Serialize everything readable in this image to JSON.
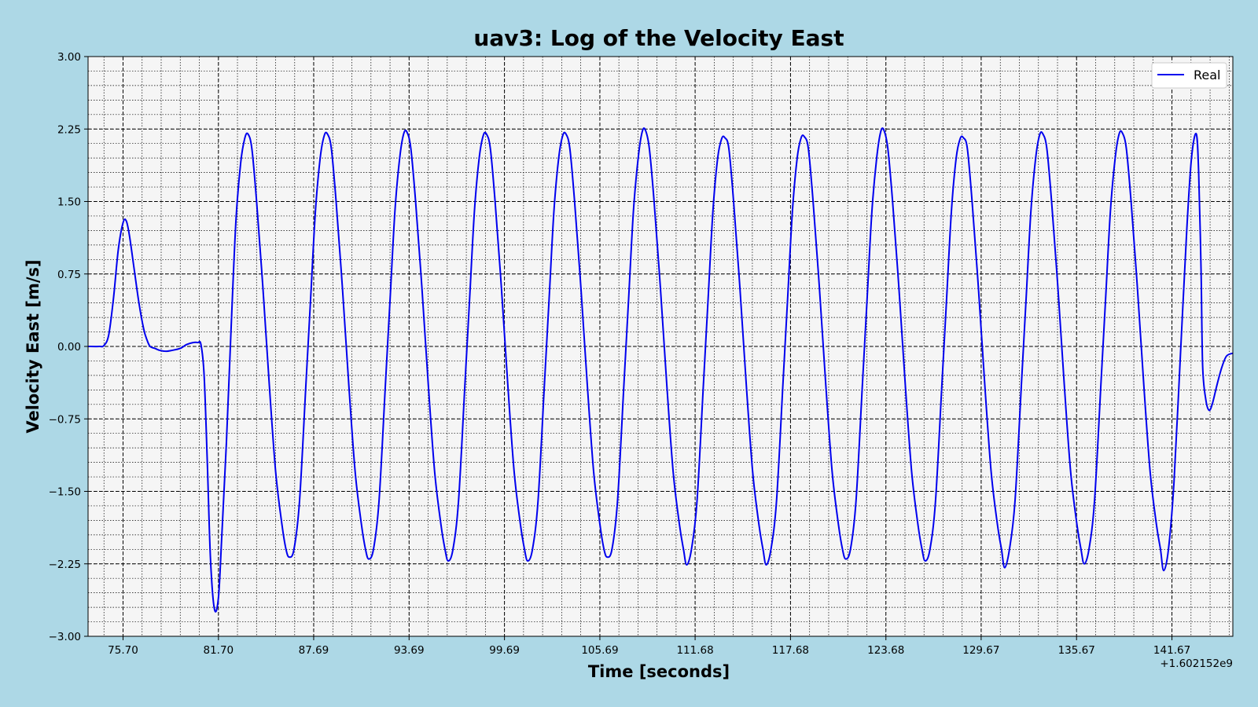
{
  "chart_data": {
    "type": "line",
    "title": "uav3: Log of the Velocity East",
    "xlabel": "Time [seconds]",
    "ylabel": "Velocity East [m/s]",
    "x_offset_label": "+1.602152e9",
    "xlim": [
      73.5,
      145.5
    ],
    "ylim": [
      -3.0,
      3.0
    ],
    "grid": "on",
    "legend_position": "top-right",
    "x_ticks": [
      75.7,
      81.7,
      87.69,
      93.69,
      99.69,
      105.69,
      111.68,
      117.68,
      123.68,
      129.67,
      135.67,
      141.67
    ],
    "x_tick_labels": [
      "75.70",
      "81.70",
      "87.69",
      "93.69",
      "99.69",
      "105.69",
      "111.68",
      "117.68",
      "123.68",
      "129.67",
      "135.67",
      "141.67"
    ],
    "y_ticks": [
      3.0,
      2.25,
      1.5,
      0.75,
      0.0,
      -0.75,
      -1.5,
      -2.25,
      -3.0
    ],
    "y_tick_labels": [
      "3.00",
      "2.25",
      "1.50",
      "0.75",
      "0.00",
      "−0.75",
      "−1.50",
      "−2.25",
      "−3.00"
    ],
    "series": [
      {
        "name": "Real",
        "color": "#0000ee",
        "points": [
          [
            73.5,
            0.0
          ],
          [
            74.2,
            0.0
          ],
          [
            74.5,
            0.01
          ],
          [
            74.8,
            0.12
          ],
          [
            75.1,
            0.5
          ],
          [
            75.4,
            1.0
          ],
          [
            75.7,
            1.28
          ],
          [
            75.9,
            1.3
          ],
          [
            76.1,
            1.15
          ],
          [
            76.4,
            0.8
          ],
          [
            76.7,
            0.45
          ],
          [
            77.0,
            0.18
          ],
          [
            77.2,
            0.07
          ],
          [
            77.4,
            0.0
          ],
          [
            77.7,
            -0.02
          ],
          [
            78.0,
            -0.04
          ],
          [
            78.4,
            -0.05
          ],
          [
            78.8,
            -0.04
          ],
          [
            79.3,
            -0.02
          ],
          [
            79.7,
            0.02
          ],
          [
            80.1,
            0.04
          ],
          [
            80.4,
            0.04
          ],
          [
            80.6,
            0.02
          ],
          [
            80.8,
            -0.3
          ],
          [
            81.0,
            -1.2
          ],
          [
            81.2,
            -2.2
          ],
          [
            81.45,
            -2.72
          ],
          [
            81.7,
            -2.6
          ],
          [
            81.9,
            -2.0
          ],
          [
            82.2,
            -1.0
          ],
          [
            82.5,
            0.2
          ],
          [
            82.8,
            1.3
          ],
          [
            83.1,
            1.9
          ],
          [
            83.35,
            2.15
          ],
          [
            83.55,
            2.2
          ],
          [
            83.8,
            2.05
          ],
          [
            84.1,
            1.5
          ],
          [
            84.5,
            0.6
          ],
          [
            84.9,
            -0.4
          ],
          [
            85.3,
            -1.3
          ],
          [
            85.7,
            -1.85
          ],
          [
            85.95,
            -2.1
          ],
          [
            86.15,
            -2.18
          ],
          [
            86.45,
            -2.1
          ],
          [
            86.8,
            -1.6
          ],
          [
            87.2,
            -0.4
          ],
          [
            87.5,
            0.5
          ],
          [
            87.8,
            1.4
          ],
          [
            88.1,
            1.95
          ],
          [
            88.35,
            2.18
          ],
          [
            88.55,
            2.2
          ],
          [
            88.8,
            2.05
          ],
          [
            89.1,
            1.5
          ],
          [
            89.5,
            0.6
          ],
          [
            89.9,
            -0.4
          ],
          [
            90.3,
            -1.3
          ],
          [
            90.7,
            -1.85
          ],
          [
            90.95,
            -2.1
          ],
          [
            91.15,
            -2.2
          ],
          [
            91.45,
            -2.1
          ],
          [
            91.8,
            -1.6
          ],
          [
            92.2,
            -0.4
          ],
          [
            92.5,
            0.5
          ],
          [
            92.8,
            1.4
          ],
          [
            93.1,
            1.95
          ],
          [
            93.35,
            2.2
          ],
          [
            93.55,
            2.22
          ],
          [
            93.8,
            2.05
          ],
          [
            94.1,
            1.5
          ],
          [
            94.5,
            0.6
          ],
          [
            94.9,
            -0.4
          ],
          [
            95.3,
            -1.3
          ],
          [
            95.7,
            -1.85
          ],
          [
            95.95,
            -2.1
          ],
          [
            96.15,
            -2.22
          ],
          [
            96.45,
            -2.1
          ],
          [
            96.8,
            -1.6
          ],
          [
            97.2,
            -0.4
          ],
          [
            97.5,
            0.5
          ],
          [
            97.8,
            1.4
          ],
          [
            98.1,
            1.95
          ],
          [
            98.35,
            2.18
          ],
          [
            98.55,
            2.2
          ],
          [
            98.8,
            2.05
          ],
          [
            99.1,
            1.5
          ],
          [
            99.5,
            0.6
          ],
          [
            99.9,
            -0.4
          ],
          [
            100.3,
            -1.3
          ],
          [
            100.7,
            -1.85
          ],
          [
            100.95,
            -2.1
          ],
          [
            101.15,
            -2.22
          ],
          [
            101.45,
            -2.1
          ],
          [
            101.8,
            -1.6
          ],
          [
            102.2,
            -0.4
          ],
          [
            102.5,
            0.5
          ],
          [
            102.8,
            1.4
          ],
          [
            103.1,
            1.95
          ],
          [
            103.35,
            2.18
          ],
          [
            103.55,
            2.2
          ],
          [
            103.8,
            2.05
          ],
          [
            104.1,
            1.5
          ],
          [
            104.5,
            0.6
          ],
          [
            104.9,
            -0.4
          ],
          [
            105.3,
            -1.3
          ],
          [
            105.7,
            -1.85
          ],
          [
            105.95,
            -2.1
          ],
          [
            106.15,
            -2.18
          ],
          [
            106.45,
            -2.1
          ],
          [
            106.8,
            -1.6
          ],
          [
            107.2,
            -0.4
          ],
          [
            107.5,
            0.5
          ],
          [
            107.8,
            1.4
          ],
          [
            108.1,
            1.95
          ],
          [
            108.35,
            2.22
          ],
          [
            108.55,
            2.24
          ],
          [
            108.8,
            2.05
          ],
          [
            109.1,
            1.5
          ],
          [
            109.5,
            0.6
          ],
          [
            109.9,
            -0.4
          ],
          [
            110.3,
            -1.3
          ],
          [
            110.7,
            -1.85
          ],
          [
            110.95,
            -2.1
          ],
          [
            111.15,
            -2.26
          ],
          [
            111.45,
            -2.1
          ],
          [
            111.8,
            -1.6
          ],
          [
            112.2,
            -0.4
          ],
          [
            112.5,
            0.5
          ],
          [
            112.8,
            1.4
          ],
          [
            113.1,
            1.95
          ],
          [
            113.35,
            2.15
          ],
          [
            113.55,
            2.16
          ],
          [
            113.8,
            2.05
          ],
          [
            114.1,
            1.5
          ],
          [
            114.5,
            0.6
          ],
          [
            114.9,
            -0.4
          ],
          [
            115.3,
            -1.3
          ],
          [
            115.7,
            -1.85
          ],
          [
            115.95,
            -2.1
          ],
          [
            116.15,
            -2.26
          ],
          [
            116.45,
            -2.1
          ],
          [
            116.8,
            -1.6
          ],
          [
            117.2,
            -0.4
          ],
          [
            117.5,
            0.5
          ],
          [
            117.8,
            1.4
          ],
          [
            118.1,
            1.95
          ],
          [
            118.35,
            2.16
          ],
          [
            118.55,
            2.17
          ],
          [
            118.8,
            2.05
          ],
          [
            119.1,
            1.5
          ],
          [
            119.5,
            0.6
          ],
          [
            119.9,
            -0.4
          ],
          [
            120.3,
            -1.3
          ],
          [
            120.7,
            -1.85
          ],
          [
            120.95,
            -2.1
          ],
          [
            121.15,
            -2.2
          ],
          [
            121.45,
            -2.1
          ],
          [
            121.8,
            -1.6
          ],
          [
            122.2,
            -0.4
          ],
          [
            122.5,
            0.5
          ],
          [
            122.8,
            1.4
          ],
          [
            123.1,
            1.95
          ],
          [
            123.35,
            2.22
          ],
          [
            123.55,
            2.24
          ],
          [
            123.8,
            2.05
          ],
          [
            124.1,
            1.5
          ],
          [
            124.5,
            0.6
          ],
          [
            124.9,
            -0.4
          ],
          [
            125.3,
            -1.3
          ],
          [
            125.7,
            -1.85
          ],
          [
            125.95,
            -2.1
          ],
          [
            126.15,
            -2.22
          ],
          [
            126.45,
            -2.1
          ],
          [
            126.8,
            -1.6
          ],
          [
            127.2,
            -0.4
          ],
          [
            127.5,
            0.5
          ],
          [
            127.8,
            1.4
          ],
          [
            128.1,
            1.95
          ],
          [
            128.35,
            2.15
          ],
          [
            128.55,
            2.16
          ],
          [
            128.8,
            2.05
          ],
          [
            129.1,
            1.5
          ],
          [
            129.5,
            0.6
          ],
          [
            129.9,
            -0.4
          ],
          [
            130.3,
            -1.3
          ],
          [
            130.7,
            -1.85
          ],
          [
            130.95,
            -2.1
          ],
          [
            131.15,
            -2.29
          ],
          [
            131.45,
            -2.1
          ],
          [
            131.8,
            -1.6
          ],
          [
            132.2,
            -0.4
          ],
          [
            132.5,
            0.5
          ],
          [
            132.8,
            1.4
          ],
          [
            133.1,
            1.95
          ],
          [
            133.35,
            2.19
          ],
          [
            133.55,
            2.2
          ],
          [
            133.8,
            2.05
          ],
          [
            134.1,
            1.5
          ],
          [
            134.5,
            0.6
          ],
          [
            134.9,
            -0.4
          ],
          [
            135.3,
            -1.3
          ],
          [
            135.7,
            -1.85
          ],
          [
            135.95,
            -2.1
          ],
          [
            136.15,
            -2.25
          ],
          [
            136.45,
            -2.1
          ],
          [
            136.8,
            -1.6
          ],
          [
            137.2,
            -0.4
          ],
          [
            137.5,
            0.5
          ],
          [
            137.8,
            1.4
          ],
          [
            138.1,
            1.95
          ],
          [
            138.35,
            2.2
          ],
          [
            138.55,
            2.21
          ],
          [
            138.8,
            2.05
          ],
          [
            139.1,
            1.5
          ],
          [
            139.5,
            0.6
          ],
          [
            139.9,
            -0.4
          ],
          [
            140.3,
            -1.3
          ],
          [
            140.7,
            -1.85
          ],
          [
            140.95,
            -2.1
          ],
          [
            141.15,
            -2.32
          ],
          [
            141.45,
            -2.1
          ],
          [
            141.8,
            -1.4
          ],
          [
            142.2,
            -0.1
          ],
          [
            142.6,
            1.2
          ],
          [
            142.9,
            1.95
          ],
          [
            143.2,
            2.2
          ],
          [
            143.35,
            1.8
          ],
          [
            143.5,
            0.8
          ],
          [
            143.6,
            -0.2
          ],
          [
            143.8,
            -0.55
          ],
          [
            144.0,
            -0.66
          ],
          [
            144.2,
            -0.6
          ],
          [
            144.5,
            -0.4
          ],
          [
            144.8,
            -0.22
          ],
          [
            145.1,
            -0.1
          ],
          [
            145.5,
            -0.07
          ]
        ]
      }
    ]
  }
}
